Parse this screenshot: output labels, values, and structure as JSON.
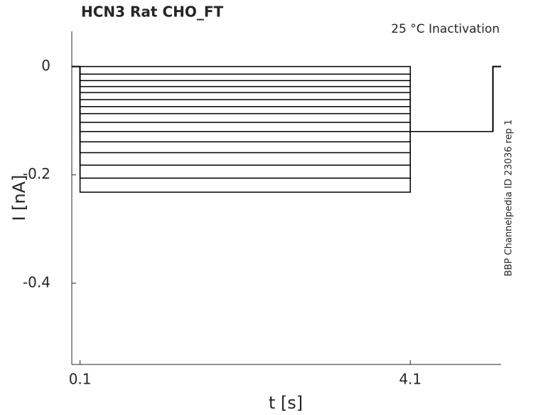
{
  "chart_data": {
    "type": "line",
    "title": "HCN3  Rat  CHO_FT",
    "annotation": "25 °C  Inactivation",
    "side_note": "BBP Channelpedia ID 23036 rep 1",
    "xlabel": "t [s]",
    "ylabel": "I [nA]",
    "x": [
      0,
      0.1,
      0.1,
      4.1,
      4.1,
      5.1,
      5.1,
      5.2
    ],
    "xlim": [
      0,
      5.2
    ],
    "xticks": [
      0.1,
      4.1
    ],
    "ylim": [
      -0.55,
      0.065
    ],
    "yticks": [
      -0.4,
      -0.2,
      0
    ],
    "series": [
      {
        "color": "#000000",
        "values": [
          0,
          0,
          0,
          0,
          -0.12,
          -0.12,
          0,
          0
        ]
      },
      {
        "color": "#000000",
        "values": [
          0,
          0,
          -0.014,
          -0.014,
          -0.12,
          -0.12,
          0,
          0
        ]
      },
      {
        "color": "#000000",
        "values": [
          0,
          0,
          -0.026,
          -0.026,
          -0.12,
          -0.12,
          0,
          0
        ]
      },
      {
        "color": "#000000",
        "values": [
          0,
          0,
          -0.037,
          -0.037,
          -0.12,
          -0.12,
          0,
          0
        ]
      },
      {
        "color": "#000000",
        "values": [
          0,
          0,
          -0.048,
          -0.048,
          -0.12,
          -0.12,
          0,
          0
        ]
      },
      {
        "color": "#000000",
        "values": [
          0,
          0,
          -0.061,
          -0.061,
          -0.12,
          -0.12,
          0,
          0
        ]
      },
      {
        "color": "#000000",
        "values": [
          0,
          0,
          -0.074,
          -0.074,
          -0.12,
          -0.12,
          0,
          0
        ]
      },
      {
        "color": "#000000",
        "values": [
          0,
          0,
          -0.087,
          -0.087,
          -0.12,
          -0.12,
          0,
          0
        ]
      },
      {
        "color": "#000000",
        "values": [
          0,
          0,
          -0.103,
          -0.103,
          -0.12,
          -0.12,
          0,
          0
        ]
      },
      {
        "color": "#000000",
        "values": [
          0,
          0,
          -0.12,
          -0.12,
          -0.12,
          -0.12,
          0,
          0
        ]
      },
      {
        "color": "#000000",
        "values": [
          0,
          0,
          -0.139,
          -0.139,
          -0.12,
          -0.12,
          0,
          0
        ]
      },
      {
        "color": "#000000",
        "values": [
          0,
          0,
          -0.159,
          -0.159,
          -0.12,
          -0.12,
          0,
          0
        ]
      },
      {
        "color": "#000000",
        "values": [
          0,
          0,
          -0.182,
          -0.182,
          -0.12,
          -0.12,
          0,
          0
        ]
      },
      {
        "color": "#000000",
        "values": [
          0,
          0,
          -0.206,
          -0.206,
          -0.12,
          -0.12,
          0,
          0
        ]
      },
      {
        "color": "#000000",
        "values": [
          0,
          0,
          -0.232,
          -0.232,
          -0.12,
          -0.12,
          0,
          0
        ]
      }
    ]
  }
}
